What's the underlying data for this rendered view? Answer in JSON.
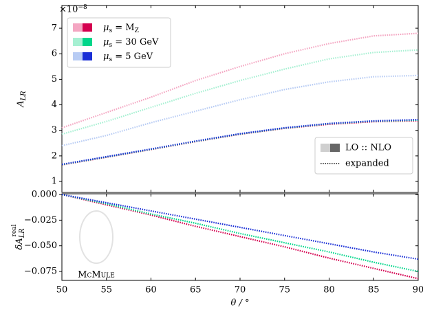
{
  "chart_data": [
    {
      "type": "line",
      "ylabel": [
        "A",
        "LR"
      ],
      "offset_text": "×10",
      "offset_exp": "−8",
      "xlim": [
        50,
        90
      ],
      "xticks": [
        50,
        55,
        60,
        65,
        70,
        75,
        80,
        85,
        90
      ],
      "ylim": [
        0.57,
        7.89
      ],
      "yticks": [
        1,
        2,
        3,
        4,
        5,
        6,
        7
      ],
      "x": [
        50,
        55,
        60,
        65,
        70,
        75,
        80,
        85,
        90
      ],
      "series": [
        {
          "name": [
            "μ",
            "s",
            " = M",
            "Z"
          ],
          "colors": [
            "#f4a6c2",
            "#d4004f"
          ],
          "lo": [
            3.1,
            3.7,
            4.3,
            4.95,
            5.5,
            6.0,
            6.4,
            6.7,
            6.8
          ],
          "nlo": [
            1.65,
            1.95,
            2.25,
            2.56,
            2.85,
            3.08,
            3.24,
            3.34,
            3.38
          ]
        },
        {
          "name": [
            "μ",
            "s",
            " = 30 GeV"
          ],
          "colors": [
            "#a6f0d2",
            "#00d68a"
          ],
          "lo": [
            2.85,
            3.35,
            3.9,
            4.45,
            4.95,
            5.4,
            5.8,
            6.05,
            6.15
          ],
          "nlo": [
            1.66,
            1.96,
            2.26,
            2.57,
            2.86,
            3.09,
            3.26,
            3.36,
            3.4
          ]
        },
        {
          "name": [
            "μ",
            "s",
            " = 5 GeV"
          ],
          "colors": [
            "#b8ccf4",
            "#1a2fd6"
          ],
          "lo": [
            2.4,
            2.8,
            3.3,
            3.75,
            4.2,
            4.6,
            4.9,
            5.1,
            5.15
          ],
          "nlo": [
            1.67,
            1.97,
            2.27,
            2.58,
            2.87,
            3.1,
            3.27,
            3.37,
            3.42
          ]
        }
      ],
      "legend2": {
        "kinds": "LO :: NLO",
        "expanded": "expanded"
      }
    },
    {
      "type": "line",
      "ylabel": [
        "δA",
        "LR"
      ],
      "ylabel_sup": "real",
      "xlabel": "θ / °",
      "watermark": "McMule",
      "xlim": [
        50,
        90
      ],
      "xticks": [
        50,
        55,
        60,
        65,
        70,
        75,
        80,
        85,
        90
      ],
      "ylim": [
        -0.0837,
        0.0007
      ],
      "yticks": [
        {
          "value": 0,
          "label": "0.000"
        },
        {
          "value": -0.025,
          "label": "−0.025"
        },
        {
          "value": -0.05,
          "label": "−0.050"
        },
        {
          "value": -0.075,
          "label": "−0.075"
        }
      ],
      "x": [
        50,
        55,
        60,
        65,
        70,
        75,
        80,
        85,
        90
      ],
      "series": [
        {
          "color": "#d4004f",
          "values": [
            0,
            -0.01,
            -0.02,
            -0.031,
            -0.041,
            -0.051,
            -0.062,
            -0.072,
            -0.082
          ]
        },
        {
          "color": "#00d68a",
          "values": [
            0,
            -0.009,
            -0.019,
            -0.028,
            -0.038,
            -0.047,
            -0.056,
            -0.066,
            -0.075
          ]
        },
        {
          "color": "#1a2fd6",
          "values": [
            0,
            -0.008,
            -0.016,
            -0.024,
            -0.032,
            -0.04,
            -0.048,
            -0.056,
            -0.063
          ]
        }
      ]
    }
  ]
}
